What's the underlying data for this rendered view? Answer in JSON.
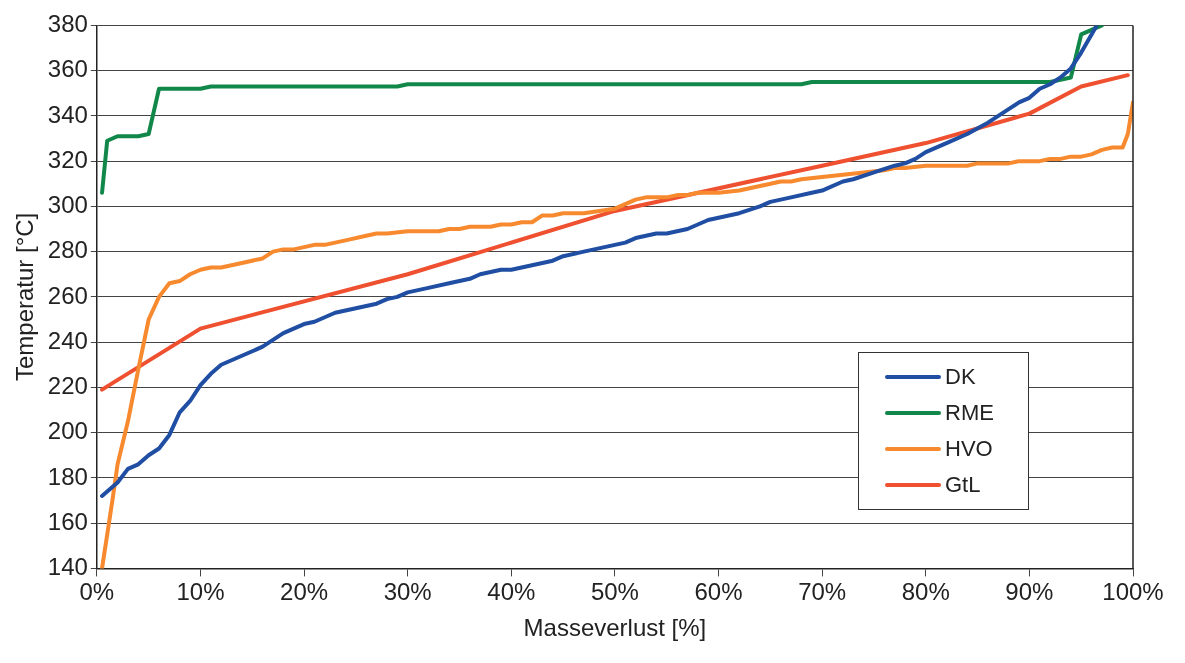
{
  "chart_data": {
    "type": "line",
    "xlabel": "Masseverlust [%]",
    "ylabel": "Temperatur [°C]",
    "xlim": [
      0,
      100
    ],
    "xticks": [
      {
        "value": 0,
        "label": "0%"
      },
      {
        "value": 10,
        "label": "10%"
      },
      {
        "value": 20,
        "label": "20%"
      },
      {
        "value": 30,
        "label": "30%"
      },
      {
        "value": 40,
        "label": "40%"
      },
      {
        "value": 50,
        "label": "50%"
      },
      {
        "value": 60,
        "label": "60%"
      },
      {
        "value": 70,
        "label": "70%"
      },
      {
        "value": 80,
        "label": "80%"
      },
      {
        "value": 90,
        "label": "90%"
      },
      {
        "value": 100,
        "label": "100%"
      }
    ],
    "ylim": [
      140,
      380
    ],
    "yticks": [
      140,
      160,
      180,
      200,
      220,
      240,
      260,
      280,
      300,
      320,
      340,
      360,
      380
    ],
    "grid": "y",
    "legend": "bottom right",
    "marker": "none",
    "line_style": "solid",
    "series": [
      {
        "name": "DK",
        "color": "#1f4ea3",
        "x": [
          0.5,
          1,
          2,
          3,
          4,
          5,
          6,
          7,
          8,
          9,
          10,
          11,
          12,
          14,
          16,
          18,
          20,
          21,
          23,
          25,
          27,
          28,
          29,
          30,
          32,
          34,
          36,
          37,
          39,
          40,
          42,
          44,
          45,
          47,
          49,
          51,
          52,
          54,
          55,
          57,
          59,
          61,
          62,
          64,
          65,
          67,
          69,
          70,
          72,
          73,
          75,
          77,
          78,
          79,
          80,
          82,
          84,
          86,
          88,
          89,
          90,
          91,
          92,
          93,
          94,
          95,
          96,
          96.5
        ],
        "values": [
          172,
          174,
          178,
          184,
          186,
          190,
          193,
          199,
          209,
          214,
          221,
          226,
          230,
          234,
          238,
          244,
          248,
          249,
          253,
          255,
          257,
          259,
          260,
          262,
          264,
          266,
          268,
          270,
          272,
          272,
          274,
          276,
          278,
          280,
          282,
          284,
          286,
          288,
          288,
          290,
          294,
          296,
          297,
          300,
          302,
          304,
          306,
          307,
          311,
          312,
          315,
          318,
          319,
          321,
          324,
          328,
          332,
          337,
          343,
          346,
          348,
          352,
          354,
          357,
          361,
          368,
          376,
          380
        ]
      },
      {
        "name": "RME",
        "color": "#11884a",
        "x": [
          0.5,
          1,
          2,
          3,
          4,
          5,
          6,
          7,
          10,
          11,
          29,
          30,
          68,
          69,
          92,
          94,
          95,
          96,
          97
        ],
        "values": [
          306,
          329,
          331,
          331,
          331,
          332,
          352,
          352,
          352,
          353,
          353,
          354,
          354,
          355,
          355,
          357,
          376,
          378,
          380
        ]
      },
      {
        "name": "HVO",
        "color": "#f7892f",
        "x": [
          0.5,
          1,
          1.5,
          2,
          3,
          4,
          5,
          6,
          7,
          8,
          9,
          10,
          11,
          12,
          14,
          16,
          17,
          18,
          19,
          21,
          22,
          24,
          26,
          27,
          28,
          30,
          33,
          34,
          35,
          36,
          38,
          39,
          40,
          41,
          42,
          43,
          44,
          45,
          47,
          50,
          51,
          52,
          53,
          55,
          56,
          57,
          58,
          60,
          62,
          64,
          66,
          67,
          68,
          70,
          72,
          74,
          76,
          77,
          78,
          80,
          84,
          85,
          88,
          89,
          91,
          92,
          93,
          94,
          95,
          96,
          97,
          98,
          99,
          99.5,
          100
        ],
        "values": [
          140,
          155,
          170,
          186,
          205,
          228,
          250,
          260,
          266,
          267,
          270,
          272,
          273,
          273,
          275,
          277,
          280,
          281,
          281,
          283,
          283,
          285,
          287,
          288,
          288,
          289,
          289,
          290,
          290,
          291,
          291,
          292,
          292,
          293,
          293,
          296,
          296,
          297,
          297,
          299,
          301,
          303,
          304,
          304,
          305,
          305,
          306,
          306,
          307,
          309,
          311,
          311,
          312,
          313,
          314,
          315,
          316,
          317,
          317,
          318,
          318,
          319,
          319,
          320,
          320,
          321,
          321,
          322,
          322,
          323,
          325,
          326,
          326,
          332,
          346
        ]
      },
      {
        "name": "GtL",
        "color": "#ee5030",
        "x": [
          0.5,
          10,
          30,
          50,
          70,
          80,
          90,
          95,
          99.5
        ],
        "values": [
          219,
          246,
          270,
          298,
          318,
          328,
          341,
          353,
          358
        ]
      }
    ]
  }
}
